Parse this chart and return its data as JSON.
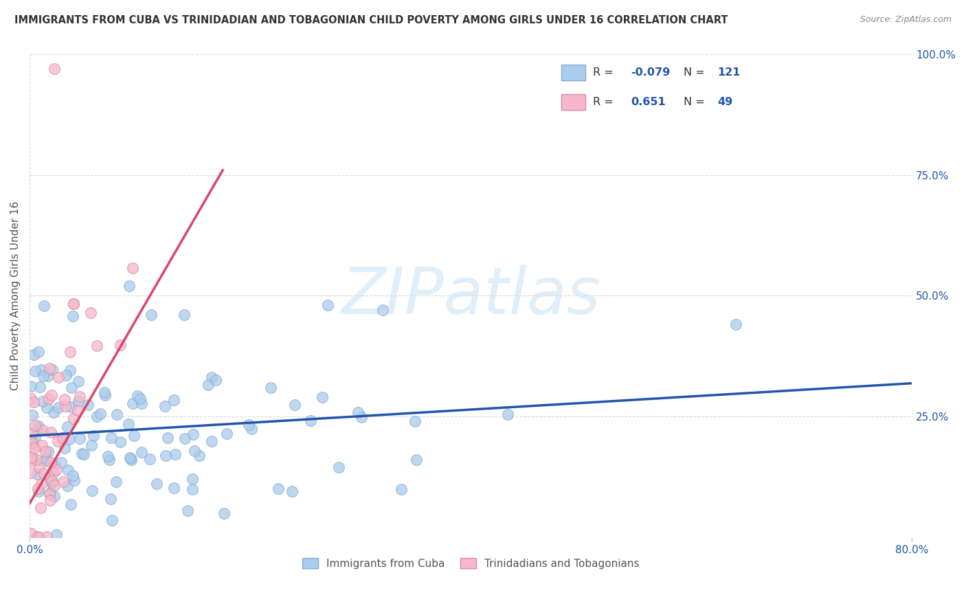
{
  "title": "IMMIGRANTS FROM CUBA VS TRINIDADIAN AND TOBAGONIAN CHILD POVERTY AMONG GIRLS UNDER 16 CORRELATION CHART",
  "source": "Source: ZipAtlas.com",
  "ylabel": "Child Poverty Among Girls Under 16",
  "xlim": [
    0.0,
    0.8
  ],
  "ylim": [
    0.0,
    1.0
  ],
  "xtick_vals": [
    0.0,
    0.8
  ],
  "xticklabels": [
    "0.0%",
    "80.0%"
  ],
  "ytick_vals": [
    0.0,
    0.25,
    0.5,
    0.75,
    1.0
  ],
  "right_yticklabels": [
    "",
    "25.0%",
    "50.0%",
    "75.0%",
    "100.0%"
  ],
  "background_color": "#ffffff",
  "grid_color": "#d8d8d8",
  "watermark_text": "ZIPatlas",
  "watermark_color": "#cce4f5",
  "series": [
    {
      "name": "Immigrants from Cuba",
      "R": -0.079,
      "N": 121,
      "color": "#aaccee",
      "edge_color": "#88aacc",
      "trend_color": "#2255aa",
      "trend_linestyle": "-"
    },
    {
      "name": "Trinidadians and Tobagonians",
      "R": 0.651,
      "N": 49,
      "color": "#f5b8cc",
      "edge_color": "#dd8899",
      "trend_color": "#dd4466",
      "trend_linestyle": "-"
    }
  ],
  "legend_R_color": "#2255aa",
  "legend_N_color": "#2255aa",
  "title_color": "#333333",
  "source_color": "#888888",
  "tick_color": "#2255aa",
  "ylabel_color": "#555555"
}
